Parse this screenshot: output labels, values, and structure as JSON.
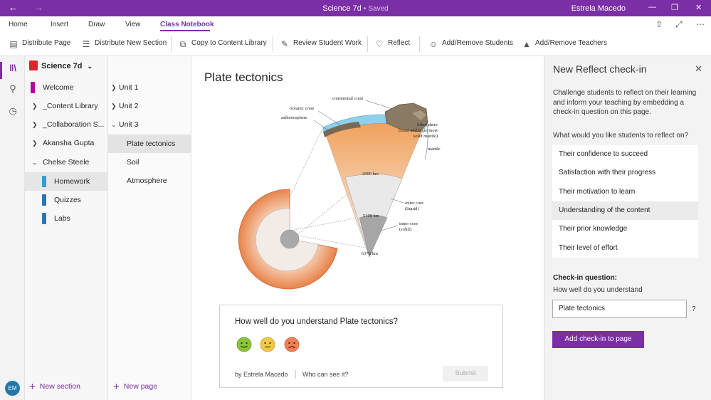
{
  "titlebar": {
    "title": "Science 7d",
    "separator": "•",
    "status": "Saved",
    "user": "Estrela Macedo"
  },
  "menu": {
    "items": [
      "Home",
      "Insert",
      "Draw",
      "View",
      "Class Notebook"
    ],
    "active": "Class Notebook"
  },
  "ribbon": {
    "distribute_page": "Distribute Page",
    "distribute_section": "Distribute New Section",
    "copy_library": "Copy to Content Library",
    "review_work": "Review Student Work",
    "reflect": "Reflect",
    "add_remove_students": "Add/Remove Students",
    "add_remove_teachers": "Add/Remove Teachers"
  },
  "avatar": "EM",
  "notebook": {
    "name": "Science 7d"
  },
  "sections": [
    {
      "label": "Welcome",
      "color": "#b4009e"
    },
    {
      "label": "_Content Library"
    },
    {
      "label": "_Collaboration S..."
    },
    {
      "label": "Akansha Gupta"
    },
    {
      "label": "Chelse Steele"
    },
    {
      "label": "Homework",
      "color": "#2e9fd6"
    },
    {
      "label": "Quizzes",
      "color": "#2e75b6"
    },
    {
      "label": "Labs",
      "color": "#2e75b6"
    }
  ],
  "new_section": "New section",
  "pages": [
    "Unit 1",
    "Unit 2",
    "Unit 3",
    "Plate tectonics",
    "Soil",
    "Atmosphere"
  ],
  "new_page": "New page",
  "page": {
    "title": "Plate tectonics"
  },
  "diagram_labels": {
    "continental_crust": "continental crust",
    "oceanic_crust": "oceanic crust",
    "asthenosphere": "asthenosphere",
    "lithosphere": "lithosphere",
    "lithosphere_sub1": "(crust and uppermost",
    "lithosphere_sub2": "solid mantle)",
    "mantle": "mantle",
    "depth1": "2900 km",
    "depth2": "5100 km",
    "depth3": "6378 km",
    "outer_core": "outer core",
    "outer_core_sub": "(liquid)",
    "inner_core": "inner core",
    "inner_core_sub": "(solid)"
  },
  "reflect": {
    "question": "How well do you understand Plate tectonics?",
    "byline": "by Estrela Macedo",
    "who": "Who can see it?",
    "submit": "Submit",
    "emoji_colors": [
      "#8cc43c",
      "#f2c94c",
      "#f0805a"
    ]
  },
  "panel": {
    "title": "New Reflect check-in",
    "close": "✕",
    "description": "Challenge students to reflect on their learning and inform your teaching by embedding a check-in question on this page.",
    "ask": "What would you like students to reflect on?",
    "options": [
      "Their confidence to succeed",
      "Satisfaction with their progress",
      "Their motivation to learn",
      "Understanding of the content",
      "Their prior knowledge",
      "Their level of effort"
    ],
    "selected_option": "Understanding of the content",
    "checkin_label": "Check-in question:",
    "checkin_prefix": "How well do you understand",
    "input_value": "Plate tectonics",
    "help": "?",
    "add_button": "Add check-in to page"
  },
  "colors": {
    "accent": "#7b2fa6"
  }
}
